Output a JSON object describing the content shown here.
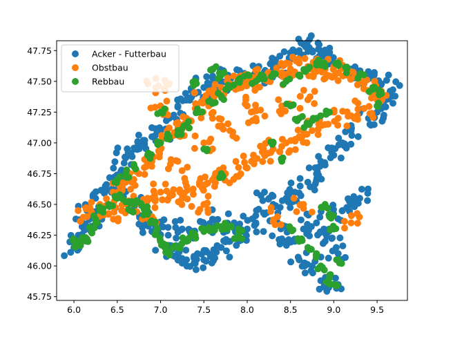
{
  "chart_data": {
    "type": "scatter",
    "title": "",
    "xlabel": "",
    "ylabel": "",
    "xlim": [
      5.8,
      9.85
    ],
    "ylim": [
      45.72,
      47.83
    ],
    "xticks": [
      6.0,
      6.5,
      7.0,
      7.5,
      8.0,
      8.5,
      9.0,
      9.5
    ],
    "xtick_labels": [
      "6.0",
      "6.5",
      "7.0",
      "7.5",
      "8.0",
      "8.5",
      "9.0",
      "9.5"
    ],
    "yticks": [
      45.75,
      46.0,
      46.25,
      46.5,
      46.75,
      47.0,
      47.25,
      47.5,
      47.75
    ],
    "ytick_labels": [
      "45.75",
      "46.00",
      "46.25",
      "46.50",
      "46.75",
      "47.00",
      "47.25",
      "47.50",
      "47.75"
    ],
    "grid": false,
    "legend_position": "upper-left",
    "series": [
      {
        "name": "Acker - Futterbau",
        "color": "#1f77b4",
        "points": [
          [
            6.0,
            46.15
          ],
          [
            6.05,
            46.25
          ],
          [
            6.1,
            46.35
          ],
          [
            6.15,
            46.45
          ],
          [
            6.25,
            46.55
          ],
          [
            6.35,
            46.62
          ],
          [
            6.45,
            46.7
          ],
          [
            6.55,
            46.78
          ],
          [
            6.6,
            46.88
          ],
          [
            6.7,
            46.95
          ],
          [
            6.8,
            47.02
          ],
          [
            6.9,
            47.05
          ],
          [
            7.0,
            47.1
          ],
          [
            7.1,
            47.2
          ],
          [
            7.2,
            47.3
          ],
          [
            7.3,
            47.35
          ],
          [
            7.4,
            47.4
          ],
          [
            7.5,
            47.45
          ],
          [
            7.6,
            47.48
          ],
          [
            7.7,
            47.5
          ],
          [
            7.8,
            47.52
          ],
          [
            7.9,
            47.53
          ],
          [
            8.0,
            47.55
          ],
          [
            8.1,
            47.56
          ],
          [
            8.2,
            47.58
          ],
          [
            8.3,
            47.6
          ],
          [
            8.4,
            47.63
          ],
          [
            8.5,
            47.68
          ],
          [
            8.6,
            47.75
          ],
          [
            8.65,
            47.8
          ],
          [
            8.75,
            47.75
          ],
          [
            8.85,
            47.7
          ],
          [
            9.0,
            47.65
          ],
          [
            9.2,
            47.6
          ],
          [
            9.4,
            47.52
          ],
          [
            9.55,
            47.48
          ],
          [
            9.65,
            47.42
          ],
          [
            9.6,
            47.35
          ],
          [
            9.5,
            47.25
          ],
          [
            9.4,
            47.2
          ],
          [
            9.2,
            47.1
          ],
          [
            9.1,
            47.0
          ],
          [
            9.0,
            46.9
          ],
          [
            8.9,
            46.82
          ],
          [
            8.8,
            46.75
          ],
          [
            8.7,
            46.68
          ],
          [
            8.55,
            46.6
          ],
          [
            8.45,
            46.55
          ],
          [
            8.3,
            46.5
          ],
          [
            8.2,
            46.42
          ],
          [
            8.1,
            46.35
          ],
          [
            8.0,
            46.3
          ],
          [
            7.9,
            46.25
          ],
          [
            7.8,
            46.2
          ],
          [
            7.7,
            46.15
          ],
          [
            7.6,
            46.1
          ],
          [
            7.5,
            46.05
          ],
          [
            7.4,
            46.02
          ],
          [
            7.3,
            46.05
          ],
          [
            7.2,
            46.1
          ],
          [
            7.1,
            46.15
          ],
          [
            7.0,
            46.2
          ],
          [
            6.9,
            46.28
          ],
          [
            6.85,
            46.38
          ],
          [
            6.8,
            46.48
          ],
          [
            7.25,
            46.3
          ],
          [
            7.35,
            46.25
          ],
          [
            7.55,
            46.3
          ],
          [
            7.85,
            46.35
          ],
          [
            8.35,
            46.35
          ],
          [
            8.4,
            46.22
          ],
          [
            8.55,
            46.2
          ],
          [
            8.65,
            46.3
          ],
          [
            8.8,
            46.35
          ],
          [
            8.95,
            46.42
          ],
          [
            9.1,
            46.45
          ],
          [
            9.2,
            46.5
          ],
          [
            9.3,
            46.55
          ],
          [
            9.0,
            46.3
          ],
          [
            8.9,
            46.2
          ],
          [
            8.6,
            46.05
          ],
          [
            8.75,
            46.0
          ],
          [
            8.85,
            45.88
          ],
          [
            9.0,
            45.85
          ],
          [
            9.05,
            46.1
          ],
          [
            6.3,
            46.4
          ],
          [
            6.5,
            46.55
          ],
          [
            7.0,
            46.35
          ],
          [
            7.6,
            46.38
          ],
          [
            8.2,
            46.6
          ]
        ]
      },
      {
        "name": "Obstbau",
        "color": "#ff7f0e",
        "points": [
          [
            6.15,
            46.4
          ],
          [
            6.3,
            46.5
          ],
          [
            6.45,
            46.6
          ],
          [
            6.6,
            46.68
          ],
          [
            6.75,
            46.75
          ],
          [
            6.9,
            46.85
          ],
          [
            7.0,
            46.95
          ],
          [
            7.1,
            47.05
          ],
          [
            7.2,
            47.12
          ],
          [
            7.3,
            47.2
          ],
          [
            7.4,
            47.28
          ],
          [
            7.5,
            47.35
          ],
          [
            7.6,
            47.4
          ],
          [
            7.7,
            47.45
          ],
          [
            7.8,
            47.48
          ],
          [
            7.9,
            47.5
          ],
          [
            8.0,
            47.5
          ],
          [
            8.1,
            47.52
          ],
          [
            8.2,
            47.53
          ],
          [
            8.3,
            47.55
          ],
          [
            8.4,
            47.57
          ],
          [
            8.5,
            47.6
          ],
          [
            8.6,
            47.65
          ],
          [
            8.7,
            47.62
          ],
          [
            8.8,
            47.58
          ],
          [
            8.9,
            47.6
          ],
          [
            9.0,
            47.62
          ],
          [
            9.15,
            47.55
          ],
          [
            9.3,
            47.5
          ],
          [
            9.45,
            47.45
          ],
          [
            9.55,
            47.42
          ],
          [
            9.5,
            47.35
          ],
          [
            9.35,
            47.28
          ],
          [
            9.2,
            47.22
          ],
          [
            9.05,
            47.2
          ],
          [
            8.9,
            47.15
          ],
          [
            8.75,
            47.1
          ],
          [
            8.6,
            47.05
          ],
          [
            8.45,
            47.0
          ],
          [
            8.3,
            46.95
          ],
          [
            8.2,
            46.9
          ],
          [
            8.05,
            46.85
          ],
          [
            7.9,
            46.8
          ],
          [
            7.75,
            46.75
          ],
          [
            7.6,
            46.7
          ],
          [
            7.45,
            46.68
          ],
          [
            7.3,
            46.65
          ],
          [
            7.15,
            46.62
          ],
          [
            7.0,
            46.6
          ],
          [
            6.85,
            46.55
          ],
          [
            6.7,
            46.5
          ],
          [
            6.55,
            46.45
          ],
          [
            6.4,
            46.42
          ],
          [
            7.2,
            46.85
          ],
          [
            7.5,
            47.0
          ],
          [
            7.8,
            47.1
          ],
          [
            8.1,
            47.2
          ],
          [
            8.4,
            47.3
          ],
          [
            8.7,
            47.35
          ],
          [
            7.0,
            47.3
          ],
          [
            6.95,
            47.45
          ],
          [
            7.1,
            47.48
          ],
          [
            8.0,
            47.3
          ],
          [
            7.6,
            47.2
          ],
          [
            6.9,
            46.4
          ],
          [
            7.25,
            46.55
          ],
          [
            7.5,
            46.5
          ],
          [
            8.35,
            46.4
          ],
          [
            9.2,
            46.35
          ],
          [
            8.65,
            46.5
          ]
        ]
      },
      {
        "name": "Rebbau",
        "color": "#2ca02c",
        "points": [
          [
            6.0,
            46.2
          ],
          [
            6.05,
            46.18
          ],
          [
            6.1,
            46.2
          ],
          [
            6.15,
            46.22
          ],
          [
            6.2,
            46.3
          ],
          [
            6.25,
            46.38
          ],
          [
            6.3,
            46.45
          ],
          [
            6.4,
            46.5
          ],
          [
            6.5,
            46.55
          ],
          [
            6.6,
            46.52
          ],
          [
            6.7,
            46.5
          ],
          [
            6.8,
            46.48
          ],
          [
            6.85,
            46.42
          ],
          [
            6.9,
            46.35
          ],
          [
            6.95,
            46.28
          ],
          [
            7.0,
            46.2
          ],
          [
            7.05,
            46.15
          ],
          [
            7.1,
            46.12
          ],
          [
            7.2,
            46.15
          ],
          [
            7.3,
            46.2
          ],
          [
            7.4,
            46.25
          ],
          [
            7.5,
            46.28
          ],
          [
            7.6,
            46.3
          ],
          [
            7.7,
            46.32
          ],
          [
            7.8,
            46.32
          ],
          [
            7.9,
            46.3
          ],
          [
            6.5,
            46.7
          ],
          [
            6.6,
            46.75
          ],
          [
            6.7,
            46.8
          ],
          [
            6.85,
            46.9
          ],
          [
            7.0,
            47.0
          ],
          [
            7.1,
            47.05
          ],
          [
            7.2,
            47.1
          ],
          [
            7.3,
            47.15
          ],
          [
            7.45,
            47.25
          ],
          [
            7.6,
            47.32
          ],
          [
            7.7,
            47.38
          ],
          [
            7.8,
            47.45
          ],
          [
            7.9,
            47.5
          ],
          [
            8.0,
            47.55
          ],
          [
            8.1,
            47.5
          ],
          [
            8.2,
            47.52
          ],
          [
            8.3,
            47.55
          ],
          [
            8.45,
            47.5
          ],
          [
            8.6,
            47.55
          ],
          [
            8.7,
            47.6
          ],
          [
            8.8,
            47.65
          ],
          [
            8.9,
            47.62
          ],
          [
            9.05,
            47.65
          ],
          [
            9.15,
            47.6
          ],
          [
            9.3,
            47.55
          ],
          [
            9.45,
            47.45
          ],
          [
            9.55,
            47.4
          ],
          [
            9.5,
            47.3
          ],
          [
            8.5,
            47.3
          ],
          [
            8.6,
            47.2
          ],
          [
            8.7,
            47.15
          ],
          [
            8.8,
            47.2
          ],
          [
            8.95,
            47.25
          ],
          [
            7.4,
            47.5
          ],
          [
            7.6,
            47.6
          ],
          [
            7.7,
            47.55
          ],
          [
            8.5,
            46.3
          ],
          [
            8.6,
            46.2
          ],
          [
            8.7,
            46.15
          ],
          [
            8.8,
            46.1
          ],
          [
            8.85,
            46.0
          ],
          [
            8.95,
            45.9
          ],
          [
            9.0,
            45.85
          ],
          [
            9.05,
            46.05
          ],
          [
            9.0,
            46.3
          ],
          [
            8.95,
            46.4
          ],
          [
            8.9,
            46.5
          ],
          [
            7.7,
            46.75
          ],
          [
            8.4,
            46.85
          ],
          [
            8.3,
            47.0
          ],
          [
            7.5,
            46.95
          ],
          [
            7.0,
            47.25
          ],
          [
            6.65,
            46.45
          ],
          [
            7.9,
            46.25
          ]
        ]
      }
    ]
  }
}
